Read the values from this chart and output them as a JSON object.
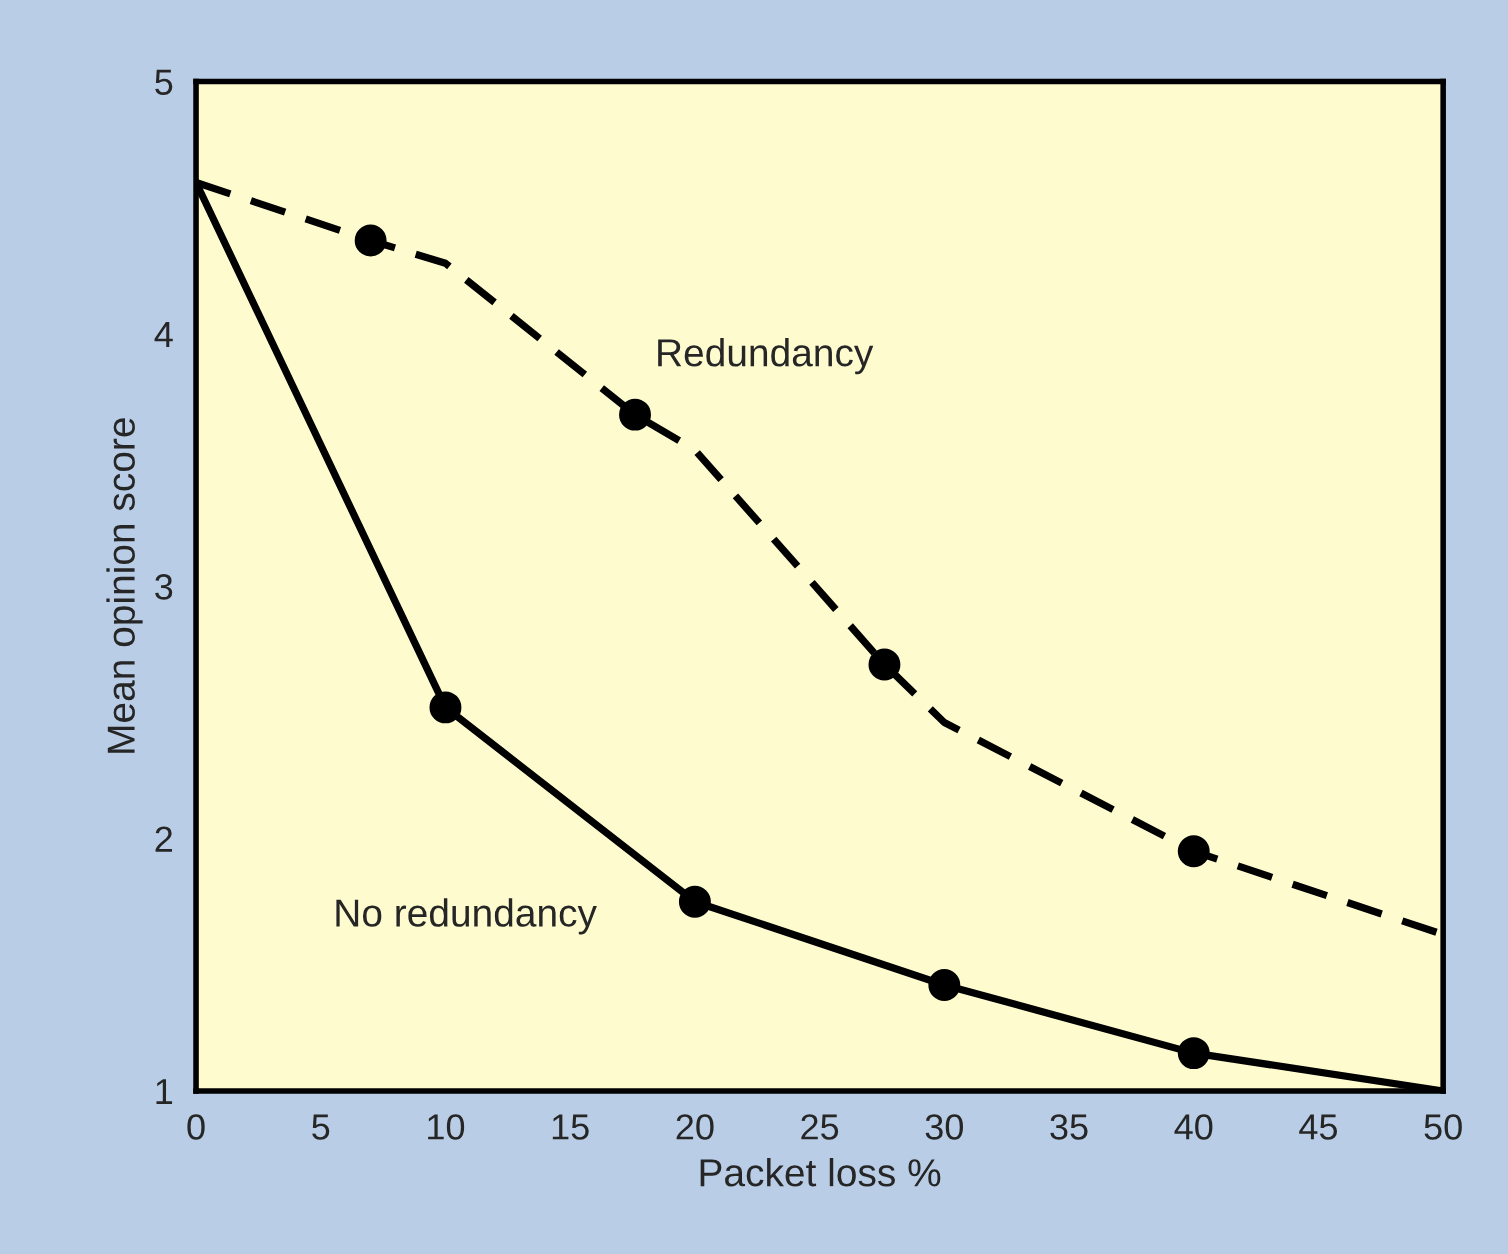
{
  "chart_data": {
    "type": "line",
    "xlabel": "Packet loss %",
    "ylabel": "Mean opinion score",
    "xlim": [
      0,
      50
    ],
    "ylim": [
      1,
      5
    ],
    "xticks": [
      0,
      5,
      10,
      15,
      20,
      25,
      30,
      35,
      40,
      45,
      50
    ],
    "yticks": [
      1,
      2,
      3,
      4,
      5
    ],
    "grid": false,
    "legend": false,
    "series": [
      {
        "line_style": "dashed",
        "marker": "none",
        "color": "#000000",
        "x": [
          0,
          7,
          10,
          17.6,
          20,
          27.6,
          30,
          40,
          50
        ],
        "values": [
          4.6,
          4.37,
          4.28,
          3.68,
          3.54,
          2.69,
          2.46,
          1.95,
          1.62
        ]
      },
      {
        "line_style": "solid",
        "marker": "none",
        "color": "#000000",
        "x": [
          0,
          10,
          20,
          30,
          40,
          50
        ],
        "values": [
          4.6,
          2.52,
          1.75,
          1.42,
          1.15,
          1.0
        ]
      },
      {
        "type": "scatter",
        "marker": "circle",
        "color": "#000000",
        "x": [
          7,
          17.6,
          27.6,
          40
        ],
        "values": [
          4.37,
          3.68,
          2.69,
          1.95
        ]
      },
      {
        "type": "scatter",
        "marker": "circle",
        "color": "#000000",
        "x": [
          10,
          20,
          30,
          40
        ],
        "values": [
          2.52,
          1.75,
          1.42,
          1.15
        ]
      }
    ],
    "annotations": [
      "Redundancy",
      "No redundancy"
    ]
  }
}
